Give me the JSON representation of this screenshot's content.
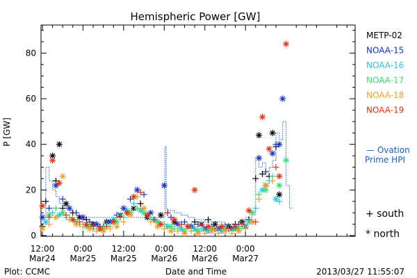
{
  "chart_data": {
    "type": "scatter",
    "title": "Hemispheric Power [GW]",
    "ylabel": "P [GW]",
    "xlabel": "Date and Time",
    "ylim": [
      0,
      92
    ],
    "yticks": [
      0,
      20,
      40,
      60,
      80
    ],
    "xlim_hours": [
      0,
      92
    ],
    "xticks": [
      {
        "h": 0,
        "top": "12:00",
        "bottom": "Mar24"
      },
      {
        "h": 12,
        "top": "0:00",
        "bottom": "Mar25"
      },
      {
        "h": 24,
        "top": "12:00",
        "bottom": "Mar25"
      },
      {
        "h": 36,
        "top": "0:00",
        "bottom": "Mar26"
      },
      {
        "h": 48,
        "top": "12:00",
        "bottom": "Mar26"
      },
      {
        "h": 60,
        "top": "0:00",
        "bottom": "Mar27"
      }
    ],
    "footer_left": "Plot: CCMC",
    "footer_right": "2013/03/27 11:55:07",
    "legend": [
      {
        "name": "METP-02",
        "color": "#000000"
      },
      {
        "name": "NOAA-15",
        "color": "#1030d0"
      },
      {
        "name": "NOAA-16",
        "color": "#20c8d8"
      },
      {
        "name": "NOAA-17",
        "color": "#30e070"
      },
      {
        "name": "NOAA-18",
        "color": "#f0a020"
      },
      {
        "name": "NOAA-19",
        "color": "#e83010"
      }
    ],
    "ovation_label_1": "— Ovation",
    "ovation_label_2": "Prime HPI",
    "ovation_color": "#1060d0",
    "marker_legend": [
      {
        "symbol": "+",
        "label": "south"
      },
      {
        "symbol": "*",
        "label": "north"
      }
    ],
    "ovation_steps": [
      [
        0,
        8
      ],
      [
        1,
        30
      ],
      [
        2,
        24
      ],
      [
        3,
        20
      ],
      [
        4,
        17
      ],
      [
        5,
        14
      ],
      [
        6,
        13
      ],
      [
        7,
        12
      ],
      [
        8,
        11
      ],
      [
        9,
        10
      ],
      [
        10,
        9
      ],
      [
        11,
        8
      ],
      [
        12,
        8
      ],
      [
        36.2,
        39
      ],
      [
        36.6,
        12
      ],
      [
        37,
        11
      ],
      [
        39,
        10
      ],
      [
        41,
        9
      ],
      [
        43,
        8
      ],
      [
        45,
        7
      ],
      [
        47,
        7
      ],
      [
        48,
        6
      ],
      [
        50,
        6
      ],
      [
        52,
        6
      ],
      [
        54,
        5
      ],
      [
        56,
        5
      ],
      [
        58,
        6
      ],
      [
        60,
        8
      ],
      [
        62,
        9
      ],
      [
        63,
        34
      ],
      [
        64,
        30
      ],
      [
        65,
        32
      ],
      [
        66,
        28
      ],
      [
        67,
        30
      ],
      [
        68,
        33
      ],
      [
        69,
        45
      ],
      [
        70,
        42
      ],
      [
        71,
        50
      ],
      [
        72,
        22
      ],
      [
        73,
        12
      ]
    ],
    "series": [
      {
        "name": "METP-02",
        "points": [
          [
            0,
            4,
            "+"
          ],
          [
            1,
            15,
            "+"
          ],
          [
            3,
            35,
            "*"
          ],
          [
            4,
            24,
            "+"
          ],
          [
            5,
            40,
            "*"
          ],
          [
            6,
            12,
            "+"
          ],
          [
            7,
            14,
            "*"
          ],
          [
            9,
            10,
            "+"
          ],
          [
            11,
            8,
            "*"
          ],
          [
            13,
            7,
            "+"
          ],
          [
            15,
            5,
            "*"
          ],
          [
            17,
            4,
            "+"
          ],
          [
            19,
            6,
            "*"
          ],
          [
            21,
            7,
            "+"
          ],
          [
            23,
            9,
            "*"
          ],
          [
            25,
            10,
            "+"
          ],
          [
            27,
            12,
            "*"
          ],
          [
            29,
            14,
            "+"
          ],
          [
            31,
            8,
            "*"
          ],
          [
            33,
            7,
            "+"
          ],
          [
            35,
            9,
            "*"
          ],
          [
            37,
            10,
            "+"
          ],
          [
            39,
            6,
            "*"
          ],
          [
            41,
            5,
            "+"
          ],
          [
            43,
            4,
            "*"
          ],
          [
            45,
            6,
            "+"
          ],
          [
            47,
            5,
            "*"
          ],
          [
            49,
            7,
            "+"
          ],
          [
            51,
            5,
            "*"
          ],
          [
            53,
            4,
            "+"
          ],
          [
            55,
            4,
            "*"
          ],
          [
            57,
            5,
            "+"
          ],
          [
            59,
            6,
            "*"
          ],
          [
            61,
            7,
            "+"
          ],
          [
            63,
            25,
            "+"
          ],
          [
            64,
            44,
            "*"
          ],
          [
            65,
            27,
            "+"
          ],
          [
            66,
            22,
            "*"
          ],
          [
            67,
            26,
            "+"
          ],
          [
            68,
            45,
            "*"
          ],
          [
            69,
            39,
            "+"
          ],
          [
            70,
            18,
            "*"
          ]
        ]
      },
      {
        "name": "NOAA-15",
        "points": [
          [
            0,
            8,
            "*"
          ],
          [
            2,
            12,
            "+"
          ],
          [
            4,
            22,
            "*"
          ],
          [
            6,
            16,
            "+"
          ],
          [
            8,
            12,
            "*"
          ],
          [
            10,
            10,
            "+"
          ],
          [
            12,
            8,
            "*"
          ],
          [
            14,
            6,
            "+"
          ],
          [
            16,
            5,
            "*"
          ],
          [
            18,
            4,
            "+"
          ],
          [
            20,
            6,
            "*"
          ],
          [
            22,
            9,
            "+"
          ],
          [
            24,
            12,
            "*"
          ],
          [
            26,
            16,
            "+"
          ],
          [
            28,
            20,
            "*"
          ],
          [
            30,
            18,
            "+"
          ],
          [
            32,
            10,
            "*"
          ],
          [
            34,
            6,
            "+"
          ],
          [
            36,
            22,
            "*"
          ],
          [
            38,
            8,
            "+"
          ],
          [
            40,
            5,
            "*"
          ],
          [
            42,
            6,
            "+"
          ],
          [
            44,
            4,
            "*"
          ],
          [
            46,
            5,
            "+"
          ],
          [
            48,
            3,
            "*"
          ],
          [
            50,
            4,
            "+"
          ],
          [
            52,
            3,
            "*"
          ],
          [
            54,
            4,
            "+"
          ],
          [
            56,
            3,
            "*"
          ],
          [
            58,
            5,
            "+"
          ],
          [
            60,
            4,
            "*"
          ],
          [
            62,
            6,
            "+"
          ],
          [
            64,
            34,
            "*"
          ],
          [
            66,
            28,
            "+"
          ],
          [
            68,
            36,
            "*"
          ],
          [
            69,
            40,
            "+"
          ],
          [
            70,
            40,
            "*"
          ],
          [
            71,
            60,
            "*"
          ]
        ]
      },
      {
        "name": "NOAA-16",
        "points": [
          [
            1,
            6,
            "*"
          ],
          [
            3,
            10,
            "+"
          ],
          [
            5,
            9,
            "*"
          ],
          [
            7,
            8,
            "+"
          ],
          [
            9,
            7,
            "*"
          ],
          [
            11,
            5,
            "+"
          ],
          [
            13,
            4,
            "*"
          ],
          [
            15,
            3,
            "+"
          ],
          [
            17,
            3,
            "*"
          ],
          [
            19,
            5,
            "+"
          ],
          [
            21,
            7,
            "*"
          ],
          [
            23,
            9,
            "+"
          ],
          [
            25,
            11,
            "*"
          ],
          [
            27,
            14,
            "+"
          ],
          [
            29,
            11,
            "*"
          ],
          [
            31,
            9,
            "+"
          ],
          [
            33,
            7,
            "*"
          ],
          [
            35,
            5,
            "+"
          ],
          [
            37,
            4,
            "*"
          ],
          [
            39,
            3,
            "+"
          ],
          [
            41,
            3,
            "*"
          ],
          [
            43,
            4,
            "+"
          ],
          [
            45,
            3,
            "*"
          ],
          [
            47,
            3,
            "+"
          ],
          [
            49,
            2,
            "*"
          ],
          [
            51,
            3,
            "+"
          ],
          [
            53,
            2,
            "*"
          ],
          [
            55,
            3,
            "+"
          ],
          [
            57,
            3,
            "*"
          ],
          [
            59,
            4,
            "+"
          ],
          [
            61,
            6,
            "*"
          ],
          [
            63,
            12,
            "+"
          ],
          [
            65,
            20,
            "*"
          ],
          [
            67,
            24,
            "+"
          ],
          [
            69,
            16,
            "*"
          ],
          [
            70,
            15,
            "+"
          ]
        ]
      },
      {
        "name": "NOAA-17",
        "points": [
          [
            2,
            9,
            "*"
          ],
          [
            4,
            12,
            "+"
          ],
          [
            6,
            10,
            "*"
          ],
          [
            8,
            8,
            "+"
          ],
          [
            10,
            6,
            "*"
          ],
          [
            12,
            5,
            "+"
          ],
          [
            14,
            4,
            "*"
          ],
          [
            16,
            3,
            "+"
          ],
          [
            18,
            3,
            "*"
          ],
          [
            20,
            4,
            "+"
          ],
          [
            22,
            6,
            "*"
          ],
          [
            24,
            8,
            "+"
          ],
          [
            26,
            10,
            "*"
          ],
          [
            28,
            12,
            "+"
          ],
          [
            30,
            10,
            "*"
          ],
          [
            32,
            8,
            "+"
          ],
          [
            34,
            6,
            "*"
          ],
          [
            36,
            5,
            "+"
          ],
          [
            38,
            4,
            "*"
          ],
          [
            40,
            3,
            "+"
          ],
          [
            42,
            2,
            "*"
          ],
          [
            44,
            3,
            "+"
          ],
          [
            46,
            2,
            "*"
          ],
          [
            48,
            2,
            "+"
          ],
          [
            50,
            3,
            "*"
          ],
          [
            52,
            2,
            "+"
          ],
          [
            54,
            3,
            "*"
          ],
          [
            56,
            2,
            "+"
          ],
          [
            58,
            3,
            "*"
          ],
          [
            60,
            4,
            "+"
          ],
          [
            62,
            10,
            "*"
          ],
          [
            64,
            18,
            "+"
          ],
          [
            66,
            20,
            "*"
          ],
          [
            68,
            26,
            "+"
          ],
          [
            70,
            22,
            "*"
          ],
          [
            72,
            33,
            "*"
          ]
        ]
      },
      {
        "name": "NOAA-18",
        "points": [
          [
            0,
            3,
            "*"
          ],
          [
            2,
            5,
            "+"
          ],
          [
            4,
            8,
            "*"
          ],
          [
            6,
            26,
            "*"
          ],
          [
            8,
            7,
            "+"
          ],
          [
            10,
            5,
            "*"
          ],
          [
            12,
            4,
            "+"
          ],
          [
            14,
            3,
            "*"
          ],
          [
            16,
            2,
            "+"
          ],
          [
            18,
            2,
            "*"
          ],
          [
            20,
            3,
            "+"
          ],
          [
            22,
            4,
            "*"
          ],
          [
            24,
            6,
            "+"
          ],
          [
            26,
            9,
            "*"
          ],
          [
            28,
            17,
            "+"
          ],
          [
            30,
            12,
            "*"
          ],
          [
            32,
            6,
            "+"
          ],
          [
            34,
            4,
            "*"
          ],
          [
            36,
            3,
            "+"
          ],
          [
            38,
            2,
            "*"
          ],
          [
            40,
            2,
            "+"
          ],
          [
            42,
            1,
            "*"
          ],
          [
            44,
            2,
            "+"
          ],
          [
            46,
            1,
            "*"
          ],
          [
            48,
            1,
            "+"
          ],
          [
            50,
            2,
            "*"
          ],
          [
            52,
            1,
            "+"
          ],
          [
            54,
            2,
            "*"
          ],
          [
            56,
            1,
            "+"
          ],
          [
            58,
            2,
            "*"
          ],
          [
            60,
            3,
            "+"
          ],
          [
            62,
            6,
            "*"
          ],
          [
            64,
            16,
            "+"
          ],
          [
            66,
            22,
            "*"
          ],
          [
            68,
            24,
            "+"
          ]
        ]
      },
      {
        "name": "NOAA-19",
        "points": [
          [
            0,
            13,
            "*"
          ],
          [
            2,
            8,
            "+"
          ],
          [
            3,
            33,
            "*"
          ],
          [
            5,
            23,
            "*"
          ],
          [
            7,
            9,
            "+"
          ],
          [
            9,
            7,
            "*"
          ],
          [
            11,
            6,
            "+"
          ],
          [
            13,
            5,
            "*"
          ],
          [
            15,
            4,
            "+"
          ],
          [
            17,
            3,
            "*"
          ],
          [
            19,
            4,
            "+"
          ],
          [
            21,
            6,
            "*"
          ],
          [
            23,
            8,
            "+"
          ],
          [
            25,
            10,
            "*"
          ],
          [
            27,
            17,
            "*"
          ],
          [
            29,
            19,
            "+"
          ],
          [
            31,
            9,
            "*"
          ],
          [
            33,
            7,
            "+"
          ],
          [
            35,
            5,
            "*"
          ],
          [
            37,
            10,
            "+"
          ],
          [
            39,
            7,
            "*"
          ],
          [
            41,
            5,
            "+"
          ],
          [
            43,
            4,
            "*"
          ],
          [
            45,
            20,
            "*"
          ],
          [
            47,
            5,
            "+"
          ],
          [
            49,
            4,
            "*"
          ],
          [
            51,
            3,
            "+"
          ],
          [
            53,
            4,
            "*"
          ],
          [
            55,
            3,
            "+"
          ],
          [
            57,
            4,
            "*"
          ],
          [
            59,
            5,
            "+"
          ],
          [
            61,
            11,
            "*"
          ],
          [
            63,
            6,
            "+"
          ],
          [
            65,
            52,
            "*"
          ],
          [
            67,
            38,
            "*"
          ],
          [
            69,
            30,
            "+"
          ],
          [
            70,
            26,
            "*"
          ],
          [
            72,
            84,
            "*"
          ]
        ]
      }
    ]
  }
}
